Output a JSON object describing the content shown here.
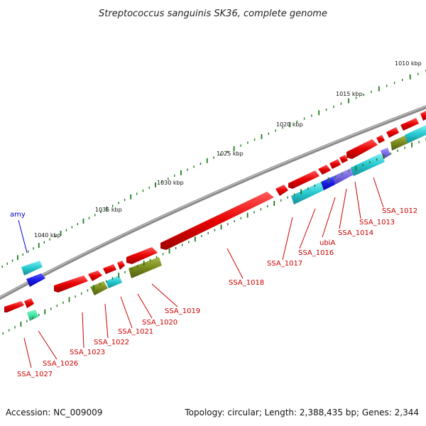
{
  "title": "Streptococcus sanguinis SK36, complete genome",
  "footer": {
    "accession": "Accession: NC_009009",
    "summary": "Topology: circular; Length: 2,388,435 bp; Genes: 2,344"
  },
  "colors": {
    "backbone": "#8a8a8a",
    "gene_red": "#e60000",
    "gene_cyan": "#27c7cf",
    "gene_blue": "#1a1ae8",
    "gene_olive": "#7a8a1c",
    "gene_purple": "#7a6ae6",
    "gene_mint": "#3fe6a6",
    "tick": "#1e7a1e",
    "label_red": "#cc0000",
    "label_blue": "#0000cc"
  },
  "kbp_labels": [
    "1010 kbp",
    "1015 kbp",
    "1020 kbp",
    "1025 kbp",
    "1030 kbp",
    "1035 kbp",
    "1040 kbp"
  ],
  "genes": [
    {
      "label": "SSA_1012",
      "color": "red"
    },
    {
      "label": "SSA_1013",
      "color": "red"
    },
    {
      "label": "SSA_1014",
      "color": "red"
    },
    {
      "label": "ubiA",
      "color": "red"
    },
    {
      "label": "SSA_1016",
      "color": "red"
    },
    {
      "label": "SSA_1017",
      "color": "red"
    },
    {
      "label": "SSA_1018",
      "color": "red"
    },
    {
      "label": "SSA_1019",
      "color": "red"
    },
    {
      "label": "SSA_1020",
      "color": "red"
    },
    {
      "label": "SSA_1021",
      "color": "red"
    },
    {
      "label": "SSA_1022",
      "color": "red"
    },
    {
      "label": "SSA_1023",
      "color": "red"
    },
    {
      "label": "SSA_1026",
      "color": "red"
    },
    {
      "label": "SSA_1027",
      "color": "red"
    },
    {
      "label": "amy",
      "color": "blue"
    }
  ]
}
